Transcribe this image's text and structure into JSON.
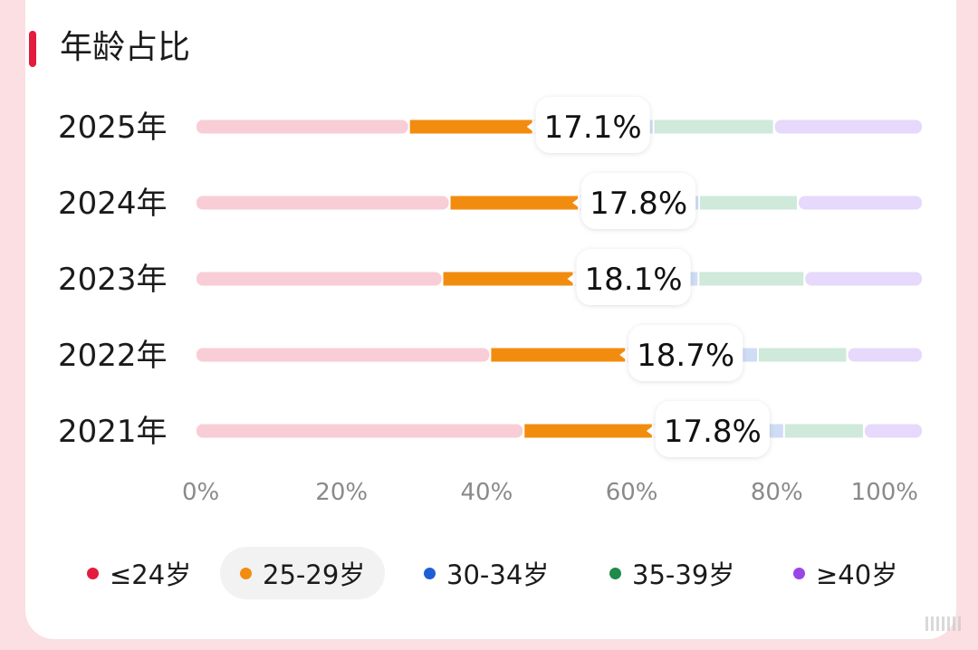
{
  "title": "年龄占比",
  "chart_data": {
    "type": "bar",
    "orientation": "horizontal",
    "stacked": true,
    "categories": [
      "2025年",
      "2024年",
      "2023年",
      "2022年",
      "2021年"
    ],
    "series": [
      {
        "name": "≤24岁",
        "color": "#f9cdd6",
        "values": [
          29.3,
          34.9,
          33.9,
          40.5,
          45.1
        ]
      },
      {
        "name": "25-29岁",
        "color": "#f28c0f",
        "values": [
          17.1,
          17.8,
          18.1,
          18.7,
          17.8
        ]
      },
      {
        "name": "30-34岁",
        "color": "#cfdcf5",
        "values": [
          16.6,
          16.6,
          17.2,
          18.2,
          18.1
        ]
      },
      {
        "name": "35-39岁",
        "color": "#cfe9da",
        "values": [
          16.6,
          13.6,
          14.6,
          12.3,
          11.0
        ]
      },
      {
        "name": "≥40岁",
        "color": "#e6d9fb",
        "values": [
          20.4,
          17.1,
          16.2,
          10.3,
          8.0
        ]
      }
    ],
    "highlight_series": "25-29岁",
    "data_labels": [
      "17.1%",
      "17.8%",
      "18.1%",
      "18.7%",
      "17.8%"
    ],
    "x_ticks": [
      "0%",
      "20%",
      "40%",
      "60%",
      "80%",
      "100%"
    ],
    "xlim": [
      0,
      100
    ]
  },
  "legend": [
    {
      "label": "≤24岁",
      "color": "#e31c3d",
      "active": false
    },
    {
      "label": "25-29岁",
      "color": "#f28c0f",
      "active": true
    },
    {
      "label": "30-34岁",
      "color": "#1f5fd6",
      "active": false
    },
    {
      "label": "35-39岁",
      "color": "#1f8a4c",
      "active": false
    },
    {
      "label": "≥40岁",
      "color": "#9a45e6",
      "active": false
    }
  ]
}
